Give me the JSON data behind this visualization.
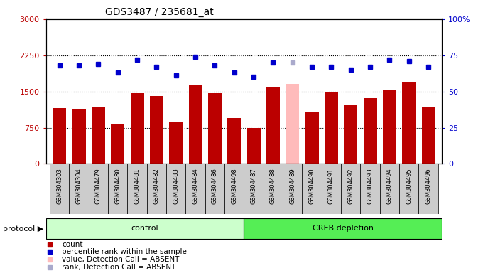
{
  "title": "GDS3487 / 235681_at",
  "samples": [
    "GSM304303",
    "GSM304304",
    "GSM304479",
    "GSM304480",
    "GSM304481",
    "GSM304482",
    "GSM304483",
    "GSM304484",
    "GSM304486",
    "GSM304498",
    "GSM304487",
    "GSM304488",
    "GSM304489",
    "GSM304490",
    "GSM304491",
    "GSM304492",
    "GSM304493",
    "GSM304494",
    "GSM304495",
    "GSM304496"
  ],
  "counts": [
    1150,
    1120,
    1180,
    820,
    1470,
    1400,
    870,
    1620,
    1460,
    950,
    740,
    1580,
    1660,
    1060,
    1500,
    1210,
    1360,
    1520,
    1700,
    1180
  ],
  "absent_indices": [
    12
  ],
  "ranks": [
    68,
    68,
    69,
    63,
    72,
    67,
    61,
    74,
    68,
    63,
    60,
    70,
    70,
    67,
    67,
    65,
    67,
    72,
    71,
    67
  ],
  "absent_rank_indices": [
    12
  ],
  "control_count": 10,
  "creb_count": 10,
  "ylim_left": [
    0,
    3000
  ],
  "ylim_right": [
    0,
    100
  ],
  "yticks_left": [
    0,
    750,
    1500,
    2250,
    3000
  ],
  "ytick_labels_left": [
    "0",
    "750",
    "1500",
    "2250",
    "3000"
  ],
  "yticks_right": [
    0,
    25,
    50,
    75,
    100
  ],
  "ytick_labels_right": [
    "0",
    "25",
    "50",
    "75",
    "100%"
  ],
  "bar_color": "#bb0000",
  "absent_bar_color": "#ffbbbb",
  "rank_color": "#0000cc",
  "absent_rank_color": "#aaaacc",
  "plot_bg": "#ffffff",
  "xticklabel_bg": "#cccccc",
  "control_label": "control",
  "creb_label": "CREB depletion",
  "control_bg": "#ccffcc",
  "creb_bg": "#55ee55",
  "protocol_label": "protocol",
  "legend_items": [
    {
      "label": "count",
      "color": "#bb0000"
    },
    {
      "label": "percentile rank within the sample",
      "color": "#0000cc"
    },
    {
      "label": "value, Detection Call = ABSENT",
      "color": "#ffbbbb"
    },
    {
      "label": "rank, Detection Call = ABSENT",
      "color": "#aaaacc"
    }
  ]
}
